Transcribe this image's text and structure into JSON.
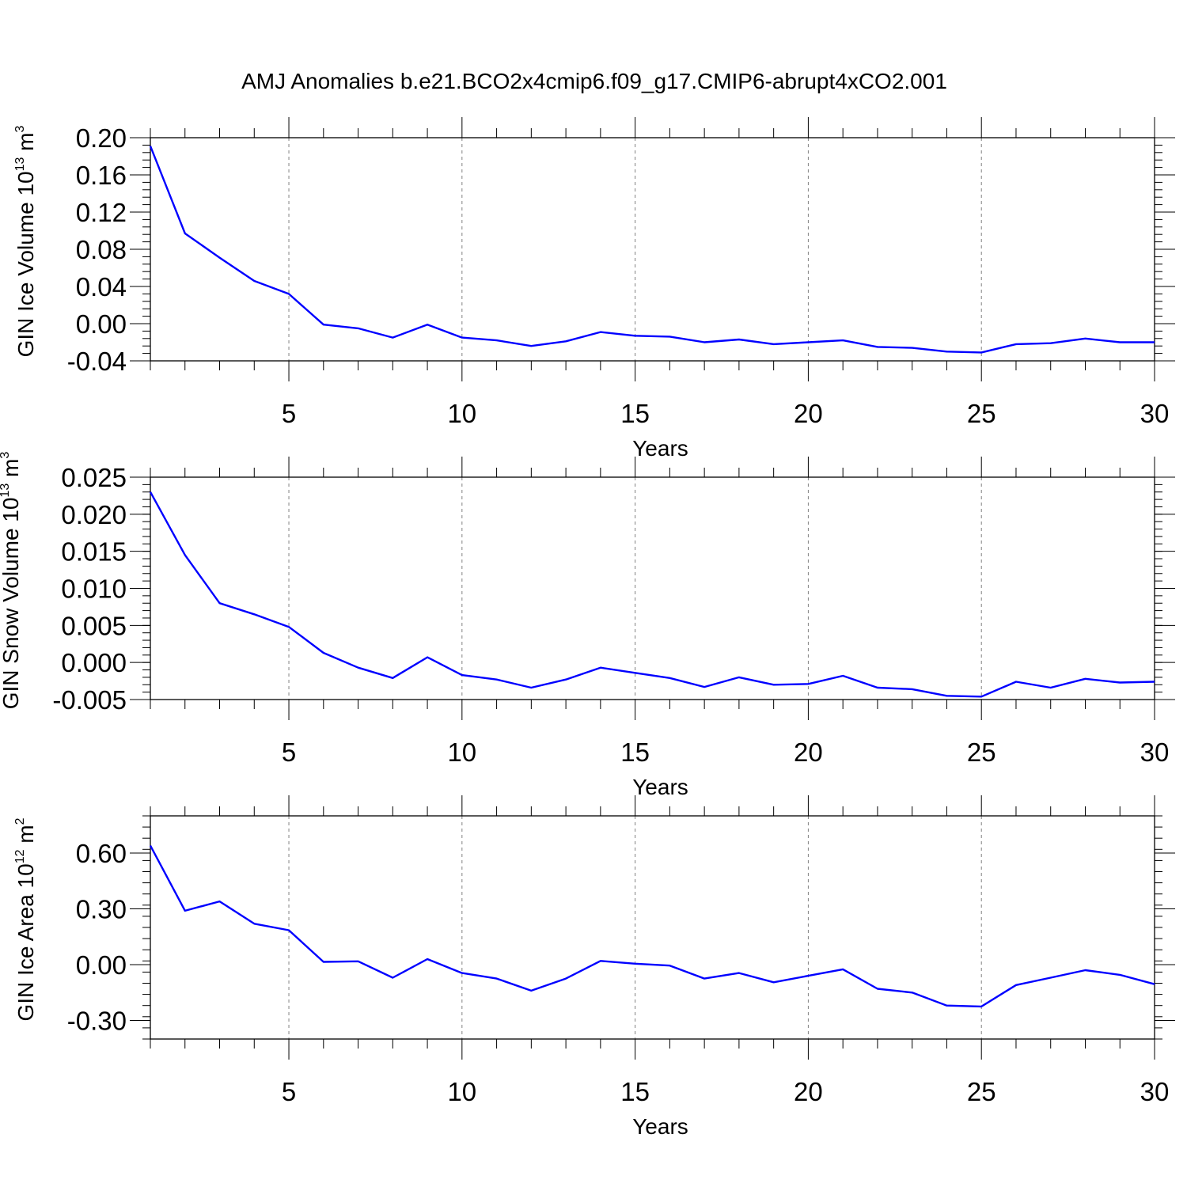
{
  "title": "AMJ Anomalies b.e21.BCO2x4cmip6.f09_g17.CMIP6-abrupt4xCO2.001",
  "colors": {
    "line": "#0000ff",
    "axis": "#000000",
    "grid": "#808080"
  },
  "chart_data": [
    {
      "type": "line",
      "ylabel_main": "GIN Ice Volume 10",
      "ylabel_exp": "13",
      "ylabel_unit": " m",
      "ylabel_unit_exp": "3",
      "xlabel": "Years",
      "xlim": [
        1,
        30
      ],
      "ylim": [
        -0.04,
        0.2
      ],
      "xticks": [
        5,
        10,
        15,
        20,
        25,
        30
      ],
      "xtick_labels": [
        "5",
        "10",
        "15",
        "20",
        "25",
        "30"
      ],
      "yticks": [
        -0.04,
        0.0,
        0.04,
        0.08,
        0.12,
        0.16,
        0.2
      ],
      "ytick_labels": [
        "-0.04",
        "0.00",
        "0.04",
        "0.08",
        "0.12",
        "0.16",
        "0.20"
      ],
      "grid": "vertical dashed at major x ticks",
      "x": [
        1,
        2,
        3,
        4,
        5,
        6,
        7,
        8,
        9,
        10,
        11,
        12,
        13,
        14,
        15,
        16,
        17,
        18,
        19,
        20,
        21,
        22,
        23,
        24,
        25,
        26,
        27,
        28,
        29,
        30
      ],
      "values": [
        0.191,
        0.097,
        0.071,
        0.046,
        0.032,
        -0.001,
        -0.005,
        -0.015,
        -0.001,
        -0.015,
        -0.018,
        -0.024,
        -0.019,
        -0.009,
        -0.013,
        -0.014,
        -0.02,
        -0.017,
        -0.022,
        -0.02,
        -0.018,
        -0.025,
        -0.026,
        -0.03,
        -0.031,
        -0.022,
        -0.021,
        -0.016,
        -0.02,
        -0.02
      ]
    },
    {
      "type": "line",
      "ylabel_main": "GIN Snow Volume 10",
      "ylabel_exp": "13",
      "ylabel_unit": " m",
      "ylabel_unit_exp": "3",
      "xlabel": "Years",
      "xlim": [
        1,
        30
      ],
      "ylim": [
        -0.005,
        0.025
      ],
      "xticks": [
        5,
        10,
        15,
        20,
        25,
        30
      ],
      "xtick_labels": [
        "5",
        "10",
        "15",
        "20",
        "25",
        "30"
      ],
      "yticks": [
        -0.005,
        0.0,
        0.005,
        0.01,
        0.015,
        0.02,
        0.025
      ],
      "ytick_labels": [
        "-0.005",
        "0.000",
        "0.005",
        "0.010",
        "0.015",
        "0.020",
        "0.025"
      ],
      "grid": "vertical dashed at major x ticks",
      "x": [
        1,
        2,
        3,
        4,
        5,
        6,
        7,
        8,
        9,
        10,
        11,
        12,
        13,
        14,
        15,
        16,
        17,
        18,
        19,
        20,
        21,
        22,
        23,
        24,
        25,
        26,
        27,
        28,
        29,
        30
      ],
      "values": [
        0.023,
        0.0145,
        0.008,
        0.0065,
        0.0048,
        0.0013,
        -0.0007,
        -0.0021,
        0.0007,
        -0.0017,
        -0.0023,
        -0.0034,
        -0.0023,
        -0.0007,
        -0.0014,
        -0.0021,
        -0.0033,
        -0.002,
        -0.003,
        -0.0029,
        -0.0018,
        -0.0034,
        -0.0036,
        -0.0045,
        -0.0046,
        -0.0026,
        -0.0034,
        -0.0022,
        -0.0027,
        -0.0026
      ]
    },
    {
      "type": "line",
      "ylabel_main": "GIN Ice Area 10",
      "ylabel_exp": "12",
      "ylabel_unit": " m",
      "ylabel_unit_exp": "2",
      "xlabel": "Years",
      "xlim": [
        1,
        30
      ],
      "ylim": [
        -0.4,
        0.8
      ],
      "xticks": [
        5,
        10,
        15,
        20,
        25,
        30
      ],
      "xtick_labels": [
        "5",
        "10",
        "15",
        "20",
        "25",
        "30"
      ],
      "yticks": [
        -0.3,
        0.0,
        0.3,
        0.6
      ],
      "ytick_labels": [
        "-0.30",
        "0.00",
        "0.30",
        "0.60"
      ],
      "grid": "vertical dashed at major x ticks",
      "x": [
        1,
        2,
        3,
        4,
        5,
        6,
        7,
        8,
        9,
        10,
        11,
        12,
        13,
        14,
        15,
        16,
        17,
        18,
        19,
        20,
        21,
        22,
        23,
        24,
        25,
        26,
        27,
        28,
        29,
        30
      ],
      "values": [
        0.64,
        0.29,
        0.34,
        0.22,
        0.185,
        0.015,
        0.018,
        -0.07,
        0.03,
        -0.045,
        -0.075,
        -0.14,
        -0.075,
        0.02,
        0.005,
        -0.005,
        -0.075,
        -0.045,
        -0.095,
        -0.06,
        -0.025,
        -0.13,
        -0.15,
        -0.22,
        -0.225,
        -0.11,
        -0.07,
        -0.03,
        -0.055,
        -0.105
      ]
    }
  ]
}
